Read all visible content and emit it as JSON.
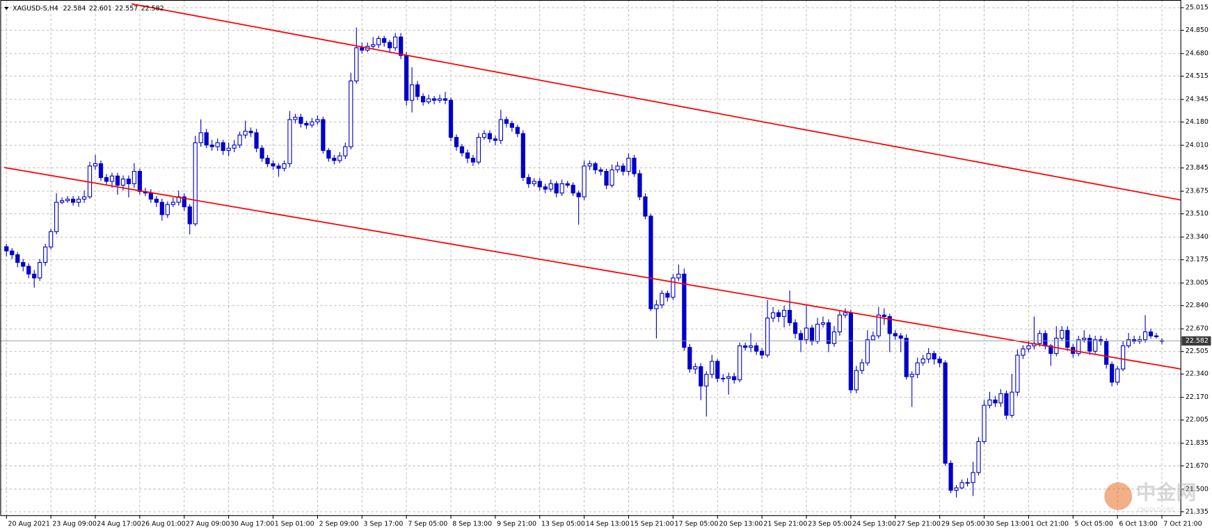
{
  "chart_data": {
    "type": "candlestick",
    "symbol": "XAGUSD-S,H4",
    "watermark": {
      "title": "中金网",
      "subtitle": "CNGOLD.ORG"
    },
    "up_color": "#ffffff",
    "down_color": "#0000c8",
    "outline_color": "#0000c8",
    "grid": true,
    "ylim": [
      21.307,
      25.071
    ],
    "yticks": [
      21.335,
      {
        "value": 21.5,
        "label": "21.500"
      },
      {
        "value": 21.67,
        "label": "21.670"
      },
      21.835,
      22.005,
      {
        "value": 22.17,
        "label": "22.170"
      },
      {
        "value": 22.34,
        "label": "22.340"
      },
      22.505,
      {
        "value": 22.67,
        "label": "22.670"
      },
      {
        "value": 22.84,
        "label": "22.840"
      },
      23.005,
      23.175,
      {
        "value": 23.34,
        "label": "23.340"
      },
      {
        "value": 23.51,
        "label": "23.510"
      },
      23.675,
      23.845,
      {
        "value": 24.01,
        "label": "24.010"
      },
      {
        "value": 24.18,
        "label": "24.180"
      },
      24.345,
      24.515,
      {
        "value": 24.68,
        "label": "24.680"
      },
      {
        "value": 24.85,
        "label": "24.850"
      },
      25.015
    ],
    "categories": [
      "20 Aug 2021",
      null,
      null,
      null,
      null,
      null,
      null,
      null,
      "23 Aug 09:00",
      null,
      null,
      null,
      null,
      null,
      null,
      null,
      "24 Aug 17:00",
      null,
      null,
      null,
      null,
      null,
      null,
      null,
      "26 Aug 01:00",
      null,
      null,
      null,
      null,
      null,
      null,
      null,
      "27 Aug 09:00",
      null,
      null,
      null,
      null,
      null,
      null,
      null,
      "30 Aug 17:00",
      null,
      null,
      null,
      null,
      null,
      null,
      null,
      "1 Sep 01:00",
      null,
      null,
      null,
      null,
      null,
      null,
      null,
      "2 Sep 09:00",
      null,
      null,
      null,
      null,
      null,
      null,
      null,
      "3 Sep 17:00",
      null,
      null,
      null,
      null,
      null,
      null,
      null,
      "7 Sep 05:00",
      null,
      null,
      null,
      null,
      null,
      null,
      null,
      "8 Sep 13:00",
      null,
      null,
      null,
      null,
      null,
      null,
      null,
      "9 Sep 21:00",
      null,
      null,
      null,
      null,
      null,
      null,
      null,
      "13 Sep 05:00",
      null,
      null,
      null,
      null,
      null,
      null,
      null,
      "14 Sep 13:00",
      null,
      null,
      null,
      null,
      null,
      null,
      null,
      "15 Sep 21:00",
      null,
      null,
      null,
      null,
      null,
      null,
      null,
      "17 Sep 05:00",
      null,
      null,
      null,
      null,
      null,
      null,
      null,
      "20 Sep 13:00",
      null,
      null,
      null,
      null,
      null,
      null,
      null,
      "21 Sep 21:00",
      null,
      null,
      null,
      null,
      null,
      null,
      null,
      "23 Sep 05:00",
      null,
      null,
      null,
      null,
      null,
      null,
      null,
      "24 Sep 13:00",
      null,
      null,
      null,
      null,
      null,
      null,
      null,
      "27 Sep 21:00",
      null,
      null,
      null,
      null,
      null,
      null,
      null,
      "29 Sep 05:00",
      null,
      null,
      null,
      null,
      null,
      null,
      null,
      "30 Sep 13:00",
      null,
      null,
      null,
      null,
      null,
      null,
      null,
      "1 Oct 21:00",
      null,
      null,
      null,
      null,
      null,
      null,
      null,
      "5 Oct 05:00",
      null,
      null,
      null,
      null,
      null,
      null,
      null,
      "6 Oct 13:00",
      null,
      null,
      null,
      null,
      null,
      null,
      null,
      "7 Oct 21:00"
    ],
    "open": [
      23.27,
      23.239,
      23.211,
      23.155,
      23.127,
      23.07,
      23.042,
      23.155,
      23.268,
      23.38,
      23.594,
      23.606,
      23.617,
      23.594,
      23.617,
      23.634,
      23.859,
      23.876,
      23.775,
      23.747,
      23.786,
      23.719,
      23.764,
      23.73,
      23.82,
      23.673,
      23.662,
      23.617,
      23.594,
      23.504,
      23.578,
      23.594,
      23.634,
      23.561,
      23.437,
      24.029,
      24.102,
      24.012,
      24.0,
      24.029,
      23.972,
      23.989,
      24.012,
      24.085,
      24.113,
      24.102,
      23.989,
      23.916,
      23.876,
      23.859,
      23.842,
      23.876,
      24.198,
      24.215,
      24.17,
      24.158,
      24.181,
      24.198,
      23.972,
      23.916,
      23.899,
      23.933,
      24.0,
      24.48,
      24.722,
      24.705,
      24.733,
      24.745,
      24.79,
      24.761,
      24.722,
      24.801,
      24.666,
      24.339,
      24.452,
      24.367,
      24.327,
      24.35,
      24.339,
      24.35,
      24.339,
      24.068,
      24.0,
      23.955,
      23.916,
      23.888,
      24.068,
      24.096,
      24.057,
      24.046,
      24.198,
      24.17,
      24.141,
      24.096,
      23.775,
      23.73,
      23.747,
      23.707,
      23.69,
      23.73,
      23.662,
      23.73,
      23.719,
      23.662,
      23.634,
      23.859,
      23.876,
      23.831,
      23.82,
      23.719,
      23.831,
      23.859,
      23.82,
      23.916,
      23.803,
      23.634,
      23.493,
      22.817,
      22.845,
      22.929,
      22.901,
      23.042,
      23.07,
      22.535,
      22.377,
      22.394,
      22.253,
      22.338,
      22.433,
      22.309,
      22.309,
      22.321,
      22.298,
      22.546,
      22.535,
      22.546,
      22.507,
      22.479,
      22.749,
      22.788,
      22.76,
      22.805,
      22.715,
      22.636,
      22.591,
      22.676,
      22.58,
      22.704,
      22.715,
      22.563,
      22.648,
      22.771,
      22.788,
      22.225,
      22.366,
      22.422,
      22.591,
      22.619,
      22.771,
      22.76,
      22.636,
      22.619,
      22.602,
      22.321,
      22.338,
      22.422,
      22.45,
      22.49,
      22.45,
      22.422,
      21.689,
      21.492,
      21.509,
      21.548,
      21.548,
      21.621,
      21.847,
      22.112,
      22.151,
      22.129,
      22.197,
      22.039,
      22.208,
      22.478,
      22.524,
      22.546,
      22.563,
      22.636,
      22.546,
      22.49,
      22.602,
      22.659,
      22.535,
      22.49,
      22.591,
      22.602,
      22.507,
      22.591,
      22.58,
      22.411,
      22.281,
      22.377,
      22.546,
      22.591,
      22.58,
      22.591,
      22.648,
      22.619,
      22.584
    ],
    "high": [
      23.29,
      23.26,
      23.23,
      23.18,
      23.15,
      23.1,
      23.18,
      23.29,
      23.4,
      23.66,
      23.63,
      23.64,
      23.64,
      23.64,
      23.68,
      23.89,
      23.94,
      23.9,
      23.8,
      23.81,
      23.81,
      23.79,
      23.79,
      23.88,
      23.84,
      23.7,
      23.69,
      23.64,
      23.62,
      23.6,
      23.63,
      23.68,
      23.66,
      23.58,
      24.08,
      24.2,
      24.13,
      24.05,
      24.06,
      24.05,
      24.03,
      24.05,
      24.11,
      24.19,
      24.14,
      24.13,
      24.01,
      23.94,
      23.9,
      23.88,
      23.9,
      24.26,
      24.24,
      24.24,
      24.19,
      24.21,
      24.23,
      24.22,
      23.99,
      23.94,
      23.96,
      24.03,
      24.54,
      24.87,
      24.76,
      24.76,
      24.8,
      24.81,
      24.81,
      24.78,
      24.83,
      24.83,
      24.69,
      24.58,
      24.48,
      24.39,
      24.38,
      24.37,
      24.38,
      24.4,
      24.36,
      24.09,
      24.02,
      23.98,
      23.94,
      24.1,
      24.12,
      24.12,
      24.08,
      24.27,
      24.22,
      24.19,
      24.16,
      24.12,
      23.8,
      23.77,
      23.77,
      23.73,
      23.76,
      23.75,
      23.76,
      23.75,
      23.74,
      23.68,
      23.9,
      23.9,
      23.89,
      23.85,
      23.84,
      23.87,
      23.89,
      23.88,
      23.95,
      23.94,
      23.83,
      23.66,
      23.51,
      22.88,
      22.95,
      22.95,
      23.07,
      23.14,
      23.11,
      22.56,
      22.42,
      22.42,
      22.36,
      22.48,
      22.45,
      22.34,
      22.35,
      22.35,
      22.57,
      22.57,
      22.64,
      22.57,
      22.53,
      22.88,
      22.83,
      22.81,
      22.84,
      22.95,
      22.74,
      22.66,
      22.85,
      22.7,
      22.75,
      22.76,
      22.74,
      22.69,
      22.8,
      22.82,
      22.81,
      22.4,
      22.45,
      22.66,
      22.65,
      22.83,
      22.82,
      22.78,
      22.66,
      22.64,
      22.63,
      22.36,
      22.46,
      22.48,
      22.53,
      22.51,
      22.47,
      22.44,
      21.71,
      21.53,
      21.57,
      21.58,
      21.7,
      21.88,
      22.15,
      22.21,
      22.18,
      22.23,
      22.22,
      22.34,
      22.52,
      22.55,
      22.58,
      22.76,
      22.66,
      22.66,
      22.56,
      22.69,
      22.69,
      22.69,
      22.56,
      22.62,
      22.66,
      22.63,
      22.62,
      22.62,
      22.6,
      22.43,
      22.4,
      22.58,
      22.64,
      22.62,
      22.62,
      22.77,
      22.67,
      22.64,
      22.601
    ],
    "low": [
      23.2,
      23.18,
      23.12,
      23.09,
      23.04,
      22.97,
      23.02,
      23.13,
      23.25,
      23.36,
      23.58,
      23.59,
      23.57,
      23.56,
      23.59,
      23.62,
      23.83,
      23.75,
      23.72,
      23.7,
      23.65,
      23.68,
      23.63,
      23.7,
      23.65,
      23.64,
      23.59,
      23.56,
      23.46,
      23.48,
      23.56,
      23.57,
      23.53,
      23.36,
      23.42,
      24.0,
      23.99,
      23.97,
      23.97,
      23.94,
      23.93,
      23.96,
      23.99,
      24.06,
      24.07,
      23.96,
      23.89,
      23.85,
      23.83,
      23.78,
      23.82,
      23.85,
      24.17,
      24.14,
      24.13,
      24.14,
      24.16,
      23.95,
      23.89,
      23.87,
      23.88,
      23.91,
      23.98,
      24.46,
      24.68,
      24.69,
      24.71,
      24.72,
      24.73,
      24.69,
      24.7,
      24.64,
      24.3,
      24.25,
      24.34,
      24.3,
      24.31,
      24.31,
      24.32,
      24.31,
      24.04,
      23.97,
      23.93,
      23.88,
      23.86,
      23.87,
      24.05,
      24.03,
      24.01,
      24.02,
      24.14,
      24.11,
      24.07,
      23.75,
      23.7,
      23.71,
      23.68,
      23.66,
      23.67,
      23.63,
      23.64,
      23.7,
      23.64,
      23.43,
      23.61,
      23.83,
      23.8,
      23.79,
      23.69,
      23.7,
      23.81,
      23.79,
      23.79,
      23.78,
      23.61,
      23.47,
      22.8,
      22.6,
      22.82,
      22.87,
      22.88,
      23.02,
      22.51,
      22.35,
      22.34,
      22.15,
      22.03,
      22.31,
      22.28,
      22.28,
      22.19,
      22.27,
      22.28,
      22.51,
      22.5,
      22.48,
      22.45,
      22.46,
      22.72,
      22.72,
      22.68,
      22.69,
      22.6,
      22.5,
      22.56,
      22.55,
      22.56,
      22.68,
      22.5,
      22.54,
      22.62,
      22.75,
      22.2,
      22.2,
      22.34,
      22.4,
      22.59,
      22.6,
      22.7,
      22.5,
      22.59,
      22.5,
      22.3,
      22.1,
      22.31,
      22.4,
      22.42,
      22.41,
      22.39,
      21.67,
      21.47,
      21.44,
      21.5,
      21.52,
      21.45,
      21.6,
      21.83,
      22.09,
      22.1,
      22.1,
      22.01,
      22.02,
      22.18,
      22.45,
      22.5,
      22.52,
      22.54,
      22.52,
      22.4,
      22.47,
      22.58,
      22.51,
      22.46,
      22.47,
      22.57,
      22.48,
      22.49,
      22.55,
      22.38,
      22.25,
      22.26,
      22.36,
      22.53,
      22.56,
      22.56,
      22.57,
      22.6,
      22.6,
      22.557
    ],
    "close": [
      23.239,
      23.211,
      23.155,
      23.127,
      23.07,
      23.042,
      23.155,
      23.268,
      23.38,
      23.594,
      23.606,
      23.617,
      23.594,
      23.617,
      23.634,
      23.859,
      23.876,
      23.775,
      23.747,
      23.786,
      23.719,
      23.764,
      23.73,
      23.82,
      23.673,
      23.662,
      23.617,
      23.594,
      23.504,
      23.578,
      23.594,
      23.634,
      23.561,
      23.437,
      24.029,
      24.102,
      24.012,
      24.0,
      24.029,
      23.972,
      23.989,
      24.012,
      24.085,
      24.113,
      24.102,
      23.989,
      23.916,
      23.876,
      23.859,
      23.842,
      23.876,
      24.198,
      24.215,
      24.17,
      24.158,
      24.181,
      24.198,
      23.972,
      23.916,
      23.899,
      23.933,
      24.0,
      24.48,
      24.722,
      24.705,
      24.733,
      24.745,
      24.79,
      24.761,
      24.722,
      24.801,
      24.666,
      24.339,
      24.452,
      24.367,
      24.327,
      24.35,
      24.339,
      24.35,
      24.339,
      24.068,
      24.0,
      23.955,
      23.916,
      23.888,
      24.068,
      24.096,
      24.057,
      24.046,
      24.198,
      24.17,
      24.141,
      24.096,
      23.775,
      23.73,
      23.747,
      23.707,
      23.69,
      23.73,
      23.662,
      23.73,
      23.719,
      23.662,
      23.634,
      23.859,
      23.876,
      23.831,
      23.82,
      23.719,
      23.831,
      23.859,
      23.82,
      23.916,
      23.803,
      23.634,
      23.493,
      22.817,
      22.845,
      22.929,
      22.901,
      23.042,
      23.07,
      22.535,
      22.377,
      22.394,
      22.253,
      22.338,
      22.433,
      22.309,
      22.309,
      22.321,
      22.298,
      22.546,
      22.535,
      22.546,
      22.507,
      22.479,
      22.749,
      22.788,
      22.76,
      22.805,
      22.715,
      22.636,
      22.591,
      22.676,
      22.58,
      22.704,
      22.715,
      22.563,
      22.648,
      22.771,
      22.788,
      22.225,
      22.366,
      22.422,
      22.591,
      22.619,
      22.771,
      22.76,
      22.636,
      22.619,
      22.602,
      22.321,
      22.338,
      22.422,
      22.45,
      22.49,
      22.45,
      22.422,
      21.689,
      21.492,
      21.509,
      21.548,
      21.548,
      21.621,
      21.847,
      22.112,
      22.151,
      22.129,
      22.197,
      22.039,
      22.208,
      22.478,
      22.524,
      22.546,
      22.563,
      22.636,
      22.546,
      22.49,
      22.602,
      22.659,
      22.535,
      22.49,
      22.591,
      22.602,
      22.507,
      22.591,
      22.58,
      22.411,
      22.281,
      22.377,
      22.546,
      22.591,
      22.58,
      22.591,
      22.648,
      22.619,
      22.613,
      22.582
    ],
    "trend_lines": [
      {
        "color": "#ff0000",
        "x": [
          22.5,
          211.4
        ],
        "y": [
          25.043,
          23.611
        ]
      },
      {
        "color": "#ff0000",
        "x": [
          -0.4,
          211.4
        ],
        "y": [
          23.848,
          22.377
        ]
      }
    ]
  }
}
